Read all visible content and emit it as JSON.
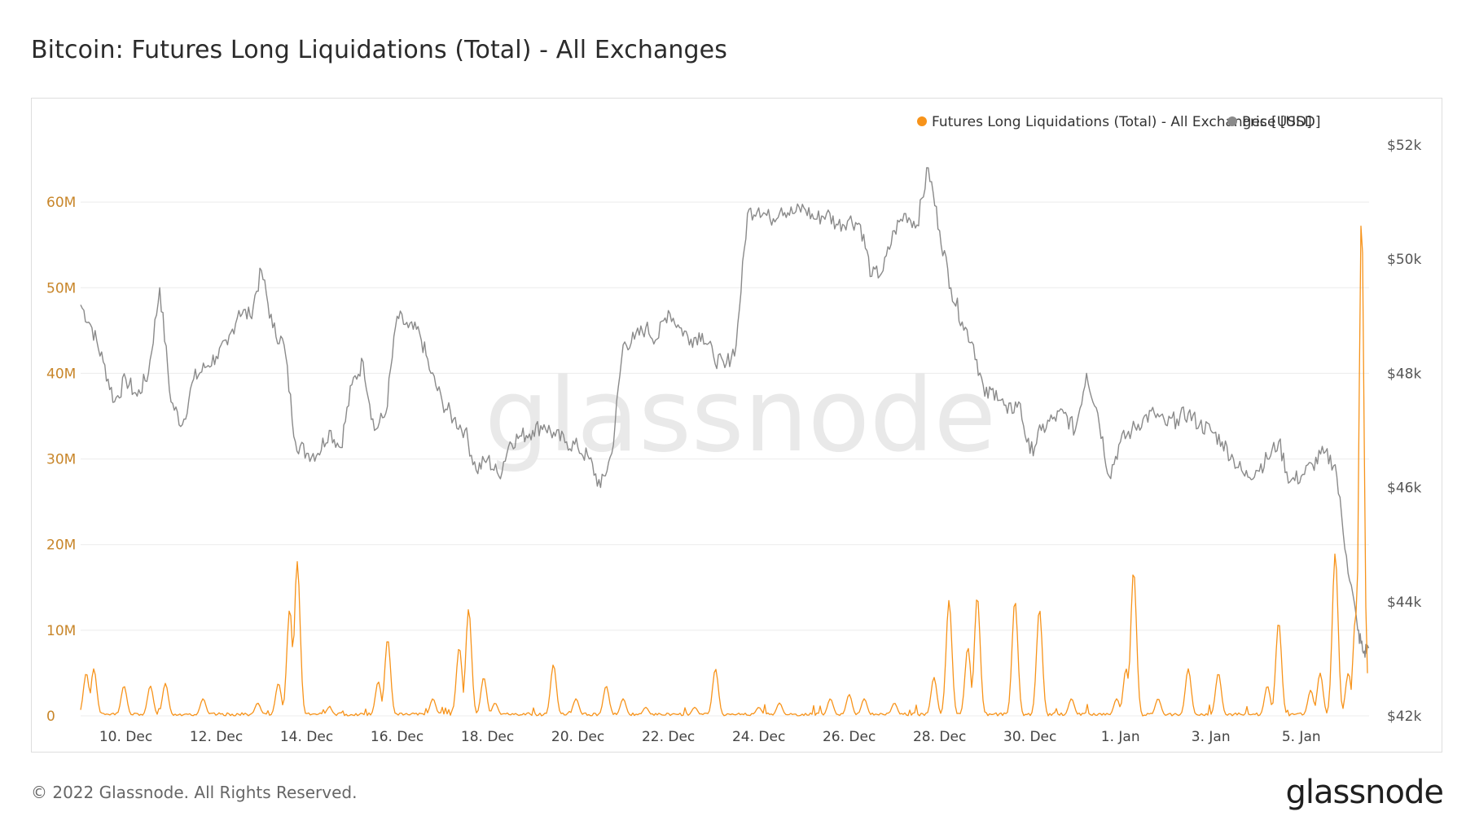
{
  "header": {
    "title": "Bitcoin: Futures Long Liquidations (Total) - All Exchanges"
  },
  "footer": {
    "copyright": "© 2022 Glassnode. All Rights Reserved.",
    "logo_text": "glassnode"
  },
  "watermark": "glassnode",
  "colors": {
    "liquidations": "#f7931a",
    "price": "#8a8a8a",
    "left_axis_text": "#c8862a",
    "right_axis_text": "#555555",
    "grid": "#ececec"
  },
  "chart_data": {
    "type": "line",
    "title": "Bitcoin: Futures Long Liquidations (Total) - All Exchanges",
    "legend": {
      "placement": "top-right",
      "entries": [
        "Futures Long Liquidations (Total) - All Exchanges [USD]",
        "Price [USD]"
      ]
    },
    "x_axis": {
      "start": "2021-12-09T00:00",
      "end": "2022-01-06T12:00",
      "tick_labels": [
        "10. Dec",
        "12. Dec",
        "14. Dec",
        "16. Dec",
        "18. Dec",
        "20. Dec",
        "22. Dec",
        "24. Dec",
        "26. Dec",
        "28. Dec",
        "30. Dec",
        "1. Jan",
        "3. Jan",
        "5. Jan"
      ],
      "tick_dates": [
        "2021-12-10",
        "2021-12-12",
        "2021-12-14",
        "2021-12-16",
        "2021-12-18",
        "2021-12-20",
        "2021-12-22",
        "2021-12-24",
        "2021-12-26",
        "2021-12-28",
        "2021-12-30",
        "2022-01-01",
        "2022-01-03",
        "2022-01-05"
      ]
    },
    "y_left": {
      "label": "",
      "ylim": [
        0,
        70000000
      ],
      "ticks": [
        0,
        10000000,
        20000000,
        30000000,
        40000000,
        50000000,
        60000000
      ],
      "tick_labels": [
        "0",
        "10M",
        "20M",
        "30M",
        "40M",
        "50M",
        "60M"
      ]
    },
    "y_right": {
      "label": "",
      "ylim": [
        42000,
        52500
      ],
      "ticks": [
        42000,
        44000,
        46000,
        48000,
        50000,
        52000
      ],
      "tick_labels": [
        "$42k",
        "$44k",
        "$46k",
        "$48k",
        "$50k",
        "$52k"
      ]
    },
    "grid": true,
    "series": [
      {
        "name": "Futures Long Liquidations (Total) - All Exchanges [USD]",
        "axis": "left",
        "baseline": 300000,
        "spikes": [
          [
            "2021-12-09T03:00",
            5000000
          ],
          [
            "2021-12-09T07:00",
            5500000
          ],
          [
            "2021-12-09T23:00",
            3500000
          ],
          [
            "2021-12-10T13:00",
            3500000
          ],
          [
            "2021-12-10T21:00",
            3800000
          ],
          [
            "2021-12-11T17:00",
            2000000
          ],
          [
            "2021-12-12T22:00",
            1500000
          ],
          [
            "2021-12-13T09:00",
            3800000
          ],
          [
            "2021-12-13T15:00",
            12500000
          ],
          [
            "2021-12-13T19:00",
            18000000
          ],
          [
            "2021-12-14T12:00",
            1000000
          ],
          [
            "2021-12-15T14:00",
            4000000
          ],
          [
            "2021-12-15T19:00",
            9000000
          ],
          [
            "2021-12-16T19:00",
            2000000
          ],
          [
            "2021-12-17T09:00",
            8000000
          ],
          [
            "2021-12-17T14:00",
            12500000
          ],
          [
            "2021-12-17T22:00",
            4500000
          ],
          [
            "2021-12-18T04:00",
            1500000
          ],
          [
            "2021-12-19T11:00",
            6000000
          ],
          [
            "2021-12-19T23:00",
            2000000
          ],
          [
            "2021-12-20T15:00",
            3500000
          ],
          [
            "2021-12-21T00:00",
            2000000
          ],
          [
            "2021-12-21T12:00",
            1000000
          ],
          [
            "2021-12-22T14:00",
            1000000
          ],
          [
            "2021-12-23T01:00",
            5500000
          ],
          [
            "2021-12-24T00:00",
            1000000
          ],
          [
            "2021-12-24T11:00",
            1500000
          ],
          [
            "2021-12-25T14:00",
            2000000
          ],
          [
            "2021-12-26T00:00",
            2500000
          ],
          [
            "2021-12-26T08:00",
            2000000
          ],
          [
            "2021-12-27T00:00",
            1500000
          ],
          [
            "2021-12-27T21:00",
            4500000
          ],
          [
            "2021-12-28T05:00",
            13500000
          ],
          [
            "2021-12-28T15:00",
            8000000
          ],
          [
            "2021-12-28T20:00",
            14000000
          ],
          [
            "2021-12-29T16:00",
            13500000
          ],
          [
            "2021-12-30T05:00",
            12500000
          ],
          [
            "2021-12-30T22:00",
            2000000
          ],
          [
            "2021-12-31T22:00",
            2000000
          ],
          [
            "2022-01-01T03:00",
            5500000
          ],
          [
            "2022-01-01T07:00",
            17000000
          ],
          [
            "2022-01-01T20:00",
            2000000
          ],
          [
            "2022-01-02T12:00",
            5500000
          ],
          [
            "2022-01-03T04:00",
            5000000
          ],
          [
            "2022-01-04T06:00",
            3500000
          ],
          [
            "2022-01-04T12:00",
            11000000
          ],
          [
            "2022-01-05T05:00",
            3000000
          ],
          [
            "2022-01-05T10:00",
            5000000
          ],
          [
            "2022-01-05T18:00",
            19000000
          ],
          [
            "2022-01-06T01:00",
            5000000
          ],
          [
            "2022-01-06T05:00",
            12000000
          ],
          [
            "2022-01-06T08:00",
            59000000
          ],
          [
            "2022-01-06T11:00",
            5000000
          ]
        ]
      },
      {
        "name": "Price [USD]",
        "axis": "right",
        "points": [
          [
            "2021-12-09T00:00",
            49200
          ],
          [
            "2021-12-09T06:00",
            48800
          ],
          [
            "2021-12-09T12:00",
            48200
          ],
          [
            "2021-12-09T18:00",
            47500
          ],
          [
            "2021-12-10T00:00",
            47900
          ],
          [
            "2021-12-10T06:00",
            47600
          ],
          [
            "2021-12-10T12:00",
            48000
          ],
          [
            "2021-12-10T18:00",
            49500
          ],
          [
            "2021-12-11T00:00",
            47500
          ],
          [
            "2021-12-11T06:00",
            47100
          ],
          [
            "2021-12-11T12:00",
            47900
          ],
          [
            "2021-12-11T18:00",
            48100
          ],
          [
            "2021-12-12T00:00",
            48300
          ],
          [
            "2021-12-12T06:00",
            48500
          ],
          [
            "2021-12-12T12:00",
            49100
          ],
          [
            "2021-12-12T18:00",
            49000
          ],
          [
            "2021-12-13T00:00",
            49800
          ],
          [
            "2021-12-13T06:00",
            48800
          ],
          [
            "2021-12-13T12:00",
            48500
          ],
          [
            "2021-12-13T18:00",
            46800
          ],
          [
            "2021-12-14T00:00",
            46600
          ],
          [
            "2021-12-14T06:00",
            46600
          ],
          [
            "2021-12-14T12:00",
            47000
          ],
          [
            "2021-12-14T18:00",
            46700
          ],
          [
            "2021-12-15T00:00",
            47800
          ],
          [
            "2021-12-15T06:00",
            48200
          ],
          [
            "2021-12-15T12:00",
            47000
          ],
          [
            "2021-12-15T18:00",
            47300
          ],
          [
            "2021-12-16T00:00",
            49000
          ],
          [
            "2021-12-16T06:00",
            48800
          ],
          [
            "2021-12-16T12:00",
            48700
          ],
          [
            "2021-12-16T18:00",
            48000
          ],
          [
            "2021-12-17T00:00",
            47500
          ],
          [
            "2021-12-17T06:00",
            47200
          ],
          [
            "2021-12-17T12:00",
            47000
          ],
          [
            "2021-12-17T18:00",
            46300
          ],
          [
            "2021-12-18T00:00",
            46500
          ],
          [
            "2021-12-18T06:00",
            46200
          ],
          [
            "2021-12-18T12:00",
            46800
          ],
          [
            "2021-12-18T18:00",
            46900
          ],
          [
            "2021-12-19T00:00",
            47000
          ],
          [
            "2021-12-19T06:00",
            47100
          ],
          [
            "2021-12-19T12:00",
            46900
          ],
          [
            "2021-12-19T18:00",
            46800
          ],
          [
            "2021-12-20T00:00",
            46700
          ],
          [
            "2021-12-20T06:00",
            46500
          ],
          [
            "2021-12-20T12:00",
            46000
          ],
          [
            "2021-12-20T18:00",
            46600
          ],
          [
            "2021-12-21T00:00",
            48500
          ],
          [
            "2021-12-21T06:00",
            48600
          ],
          [
            "2021-12-21T12:00",
            48800
          ],
          [
            "2021-12-21T18:00",
            48600
          ],
          [
            "2021-12-22T00:00",
            49100
          ],
          [
            "2021-12-22T06:00",
            48800
          ],
          [
            "2021-12-22T12:00",
            48600
          ],
          [
            "2021-12-22T18:00",
            48700
          ],
          [
            "2021-12-23T00:00",
            48300
          ],
          [
            "2021-12-23T06:00",
            48100
          ],
          [
            "2021-12-23T12:00",
            48500
          ],
          [
            "2021-12-23T18:00",
            50800
          ],
          [
            "2021-12-24T00:00",
            50900
          ],
          [
            "2021-12-24T06:00",
            50700
          ],
          [
            "2021-12-24T12:00",
            50900
          ],
          [
            "2021-12-24T18:00",
            50800
          ],
          [
            "2021-12-25T00:00",
            50900
          ],
          [
            "2021-12-25T06:00",
            50700
          ],
          [
            "2021-12-25T12:00",
            50800
          ],
          [
            "2021-12-25T18:00",
            50600
          ],
          [
            "2021-12-26T00:00",
            50700
          ],
          [
            "2021-12-26T06:00",
            50600
          ],
          [
            "2021-12-26T12:00",
            49700
          ],
          [
            "2021-12-26T18:00",
            49800
          ],
          [
            "2021-12-27T00:00",
            50500
          ],
          [
            "2021-12-27T06:00",
            50800
          ],
          [
            "2021-12-27T12:00",
            50600
          ],
          [
            "2021-12-27T18:00",
            51600
          ],
          [
            "2021-12-28T00:00",
            50500
          ],
          [
            "2021-12-28T06:00",
            49500
          ],
          [
            "2021-12-28T12:00",
            48900
          ],
          [
            "2021-12-28T18:00",
            48500
          ],
          [
            "2021-12-29T00:00",
            47600
          ],
          [
            "2021-12-29T06:00",
            47700
          ],
          [
            "2021-12-29T12:00",
            47300
          ],
          [
            "2021-12-29T18:00",
            47500
          ],
          [
            "2021-12-30T00:00",
            46600
          ],
          [
            "2021-12-30T06:00",
            47000
          ],
          [
            "2021-12-30T12:00",
            47200
          ],
          [
            "2021-12-30T18:00",
            47300
          ],
          [
            "2021-12-31T00:00",
            47000
          ],
          [
            "2021-12-31T06:00",
            48000
          ],
          [
            "2021-12-31T12:00",
            47300
          ],
          [
            "2021-12-31T18:00",
            46200
          ],
          [
            "2022-01-01T00:00",
            46800
          ],
          [
            "2022-01-01T06:00",
            47000
          ],
          [
            "2022-01-01T12:00",
            47200
          ],
          [
            "2022-01-01T18:00",
            47300
          ],
          [
            "2022-01-02T00:00",
            47100
          ],
          [
            "2022-01-02T06:00",
            47200
          ],
          [
            "2022-01-02T12:00",
            47300
          ],
          [
            "2022-01-02T18:00",
            47100
          ],
          [
            "2022-01-03T00:00",
            47000
          ],
          [
            "2022-01-03T06:00",
            46800
          ],
          [
            "2022-01-03T12:00",
            46500
          ],
          [
            "2022-01-03T18:00",
            46200
          ],
          [
            "2022-01-04T00:00",
            46300
          ],
          [
            "2022-01-04T06:00",
            46500
          ],
          [
            "2022-01-04T12:00",
            46800
          ],
          [
            "2022-01-04T18:00",
            46100
          ],
          [
            "2022-01-05T00:00",
            46200
          ],
          [
            "2022-01-05T06:00",
            46400
          ],
          [
            "2022-01-05T12:00",
            46600
          ],
          [
            "2022-01-05T18:00",
            46400
          ],
          [
            "2022-01-06T00:00",
            44800
          ],
          [
            "2022-01-06T06:00",
            43500
          ],
          [
            "2022-01-06T09:00",
            43100
          ],
          [
            "2022-01-06T12:00",
            43200
          ]
        ]
      }
    ]
  }
}
